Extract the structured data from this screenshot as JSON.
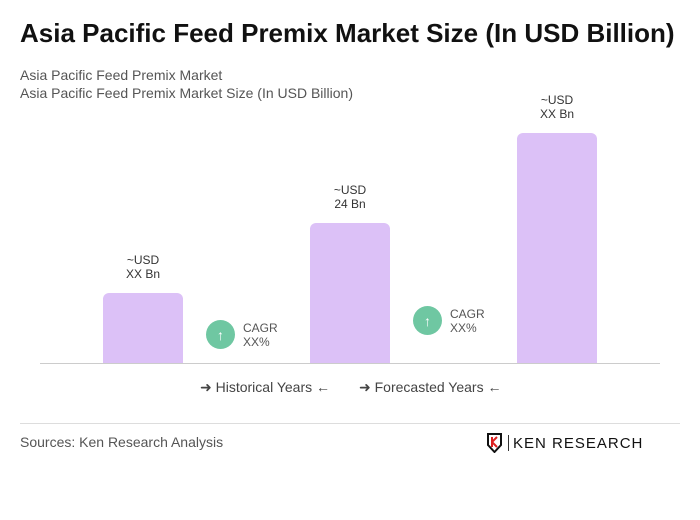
{
  "chart_data": {
    "type": "bar",
    "title": "Asia Pacific Feed Premix Market Size (In USD Billion)",
    "subtitle": [
      "Asia Pacific Feed Premix Market",
      "Asia Pacific Feed Premix Market Size (In USD Billion)"
    ],
    "categories": [
      "",
      "",
      ""
    ],
    "values": [
      null,
      24,
      null
    ],
    "data_labels": [
      [
        "~USD",
        "XX Bn"
      ],
      [
        "~USD",
        "24 Bn"
      ],
      [
        "~USD",
        "XX Bn"
      ]
    ],
    "cagr": [
      {
        "label": "CAGR",
        "value": "XX%"
      },
      {
        "label": "CAGR",
        "value": "XX%"
      }
    ],
    "legend": [
      "Historical Years",
      "Forecasted Years"
    ],
    "bar_color": "#dcc1f7",
    "cagr_color": "#6fc7a2",
    "grid": false
  },
  "footer": {
    "sources": "Sources: Ken Research Analysis",
    "logo": "KEN RESEARCH"
  }
}
